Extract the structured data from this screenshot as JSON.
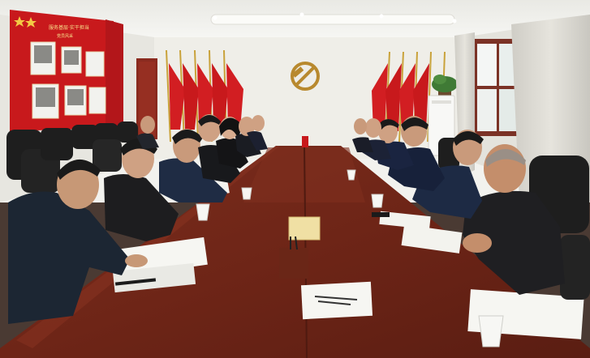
{
  "board": {
    "heading_top": "服务基层·实干担当",
    "heading_sub": "党员风采"
  },
  "colors": {
    "wall": "#efeee8",
    "ceiling": "#f7f7f4",
    "party_red": "#c8191c",
    "flag_red": "#d21e22",
    "table_wood": "#6b2416",
    "table_top": "#7a2a1a",
    "floor": "#4a3a33",
    "chair_black": "#1e1e1e",
    "jacket_dark": "#1c2633",
    "suit_navy": "#1d2a44",
    "window_frame": "#7b3226",
    "curtain": "#dcdad3",
    "paper_white": "#f6f6f2",
    "emblem_gold": "#b8892e"
  },
  "icons": [
    "party-emblem",
    "flag",
    "paper-cup",
    "tissue-box",
    "pen-holder",
    "nameplate",
    "photo-frame",
    "potted-plant",
    "air-conditioner"
  ]
}
